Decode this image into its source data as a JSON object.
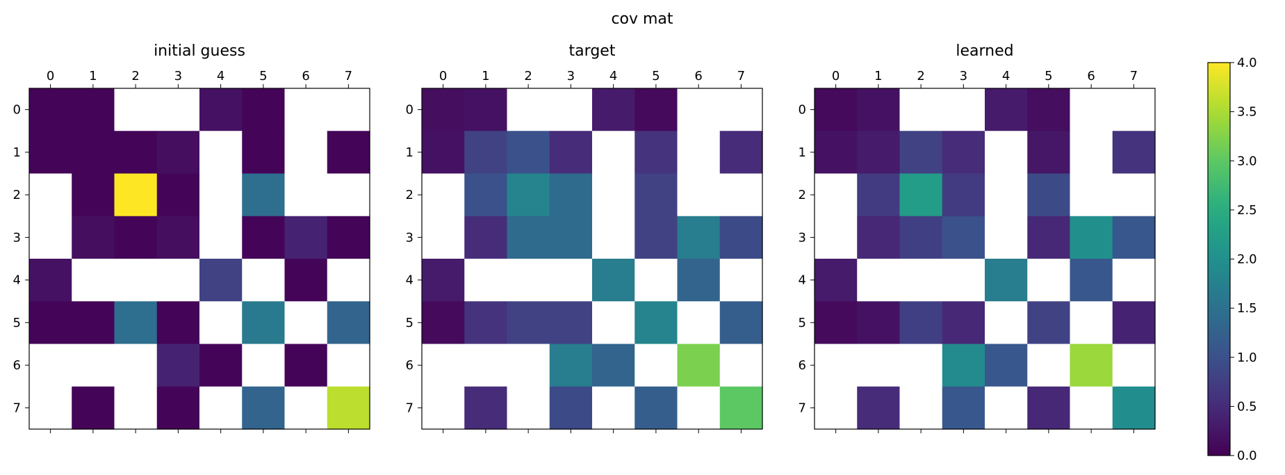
{
  "suptitle": "cov mat",
  "colorbar": {
    "min": 0.0,
    "max": 4.0,
    "ticks": [
      "0.0",
      "0.5",
      "1.0",
      "1.5",
      "2.0",
      "2.5",
      "3.0",
      "3.5",
      "4.0"
    ],
    "colormap": "viridis"
  },
  "chart_data": [
    {
      "type": "heatmap",
      "title": "initial guess",
      "x": [
        "0",
        "1",
        "2",
        "3",
        "4",
        "5",
        "6",
        "7"
      ],
      "y": [
        "0",
        "1",
        "2",
        "3",
        "4",
        "5",
        "6",
        "7"
      ],
      "vmin": 0.0,
      "vmax": 4.0,
      "values": [
        [
          0.05,
          0.05,
          null,
          null,
          0.2,
          0.05,
          null,
          null
        ],
        [
          0.05,
          0.05,
          0.05,
          0.15,
          null,
          0.05,
          null,
          0.05
        ],
        [
          null,
          0.05,
          4.0,
          0.05,
          null,
          1.45,
          null,
          null
        ],
        [
          null,
          0.15,
          0.05,
          0.15,
          null,
          0.05,
          0.4,
          0.05
        ],
        [
          0.2,
          null,
          null,
          null,
          0.8,
          null,
          0.05,
          null
        ],
        [
          0.05,
          0.05,
          1.45,
          0.05,
          null,
          1.65,
          null,
          1.3
        ],
        [
          null,
          null,
          null,
          0.4,
          0.05,
          null,
          0.05,
          null
        ],
        [
          null,
          0.05,
          null,
          0.05,
          null,
          1.3,
          null,
          3.6
        ]
      ]
    },
    {
      "type": "heatmap",
      "title": "target",
      "x": [
        "0",
        "1",
        "2",
        "3",
        "4",
        "5",
        "6",
        "7"
      ],
      "y": [
        "0",
        "1",
        "2",
        "3",
        "4",
        "5",
        "6",
        "7"
      ],
      "vmin": 0.0,
      "vmax": 4.0,
      "values": [
        [
          0.15,
          0.2,
          null,
          null,
          0.3,
          0.1,
          null,
          null
        ],
        [
          0.2,
          0.8,
          1.0,
          0.5,
          null,
          0.6,
          null,
          0.5
        ],
        [
          null,
          1.0,
          1.8,
          1.4,
          null,
          0.8,
          null,
          null
        ],
        [
          null,
          0.5,
          1.4,
          1.4,
          null,
          0.8,
          1.7,
          0.9
        ],
        [
          0.3,
          null,
          null,
          null,
          1.7,
          null,
          1.3,
          null
        ],
        [
          0.1,
          0.6,
          0.8,
          0.8,
          null,
          1.8,
          null,
          1.2
        ],
        [
          null,
          null,
          null,
          1.7,
          1.3,
          null,
          3.2,
          null
        ],
        [
          null,
          0.5,
          null,
          0.9,
          null,
          1.2,
          null,
          3.0
        ]
      ]
    },
    {
      "type": "heatmap",
      "title": "learned",
      "x": [
        "0",
        "1",
        "2",
        "3",
        "4",
        "5",
        "6",
        "7"
      ],
      "y": [
        "0",
        "1",
        "2",
        "3",
        "4",
        "5",
        "6",
        "7"
      ],
      "vmin": 0.0,
      "vmax": 4.0,
      "values": [
        [
          0.1,
          0.2,
          null,
          null,
          0.3,
          0.15,
          null,
          null
        ],
        [
          0.2,
          0.3,
          0.8,
          0.5,
          null,
          0.25,
          null,
          0.6
        ],
        [
          null,
          0.7,
          2.2,
          0.7,
          null,
          0.9,
          null,
          null
        ],
        [
          null,
          0.45,
          0.75,
          1.0,
          null,
          0.45,
          2.0,
          1.1
        ],
        [
          0.3,
          null,
          null,
          null,
          1.7,
          null,
          1.1,
          null
        ],
        [
          0.1,
          0.2,
          0.75,
          0.45,
          null,
          0.8,
          null,
          0.4
        ],
        [
          null,
          null,
          null,
          1.9,
          1.1,
          null,
          3.4,
          null
        ],
        [
          null,
          0.5,
          null,
          1.1,
          null,
          0.45,
          null,
          1.95
        ]
      ]
    }
  ]
}
